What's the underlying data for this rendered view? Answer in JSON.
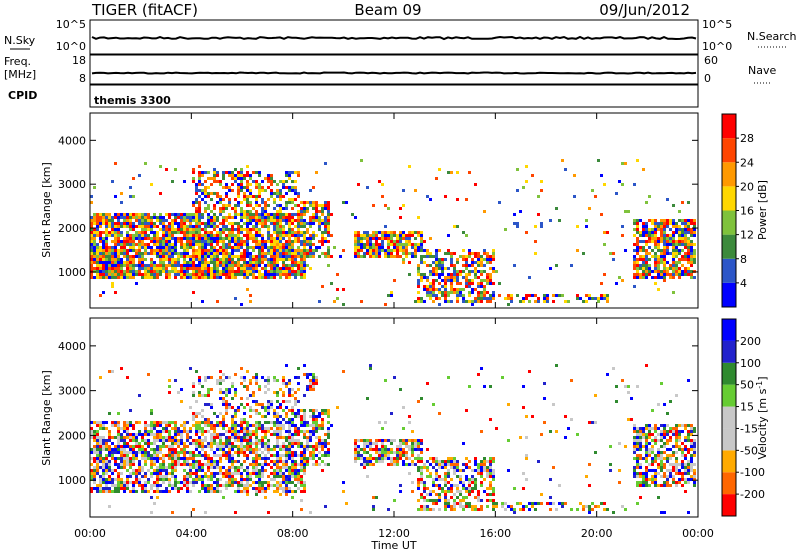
{
  "header": {
    "radar": "TIGER (fitACF)",
    "beam": "Beam 09",
    "date": "09/Jun/2012"
  },
  "sky_panel": {
    "left_label": "N.Sky",
    "left_ticks": [
      "10^5",
      "10^0"
    ],
    "right_label": "N.Search",
    "right_ticks": [
      "10^5",
      "10^0"
    ]
  },
  "freq_panel": {
    "left_label_1": "Freq.",
    "left_label_2": "[MHz]",
    "left_ticks": [
      "18",
      "8"
    ],
    "right_label": "Nave",
    "right_ticks": [
      "60",
      "0"
    ]
  },
  "cpid_panel": {
    "label": "CPID",
    "program": "themis 3300"
  },
  "chart_data": [
    {
      "type": "heatmap",
      "name": "power",
      "ylabel": "Slant Range [km]",
      "yticks": [
        "4000",
        "3000",
        "2000",
        "1000"
      ],
      "ylim": [
        200,
        4600
      ],
      "xlim_hours": [
        0,
        24
      ],
      "colorbar_label": "Power [dB]",
      "colorbar_ticks": [
        "28",
        "24",
        "20",
        "16",
        "12",
        "8",
        "4"
      ],
      "colors": [
        "#0000ff",
        "#2c56c8",
        "#3c8a3c",
        "#7fc23c",
        "#ffd700",
        "#ff9900",
        "#ff4500",
        "#ff0000"
      ],
      "bands": [
        {
          "t0": 0.0,
          "t1": 8.5,
          "r0": 800,
          "r1": 2300,
          "density": 0.85
        },
        {
          "t0": 0.3,
          "t1": 6.5,
          "r0": 900,
          "r1": 1150,
          "density": 0.95
        },
        {
          "t0": 4.0,
          "t1": 8.3,
          "r0": 1200,
          "r1": 3300,
          "density": 0.5
        },
        {
          "t0": 8.0,
          "t1": 9.5,
          "r0": 1300,
          "r1": 2600,
          "density": 0.7
        },
        {
          "t0": 10.5,
          "t1": 13.2,
          "r0": 1300,
          "r1": 1900,
          "density": 0.8
        },
        {
          "t0": 13.0,
          "t1": 16.0,
          "r0": 300,
          "r1": 1500,
          "density": 0.6
        },
        {
          "t0": 16.0,
          "t1": 20.5,
          "r0": 250,
          "r1": 450,
          "density": 0.4
        },
        {
          "t0": 21.5,
          "t1": 24.0,
          "r0": 800,
          "r1": 2200,
          "density": 0.75
        },
        {
          "t0": 0.0,
          "t1": 24.0,
          "r0": 200,
          "r1": 3600,
          "density": 0.03
        }
      ]
    },
    {
      "type": "heatmap",
      "name": "velocity",
      "ylabel": "Slant Range [km]",
      "yticks": [
        "4000",
        "3000",
        "2000",
        "1000"
      ],
      "ylim": [
        200,
        4600
      ],
      "xlim_hours": [
        0,
        24
      ],
      "xticks": [
        "00:00",
        "04:00",
        "08:00",
        "12:00",
        "16:00",
        "20:00",
        "00:00"
      ],
      "xlabel": "Time UT",
      "colorbar_label": "Velocity [m s",
      "colorbar_sup": "-1",
      "colorbar_label_end": "]",
      "colorbar_ticks": [
        "200",
        "100",
        "50",
        "15",
        "-15",
        "-50",
        "-100",
        "-200"
      ],
      "colors": [
        "#ff0000",
        "#ff6600",
        "#ffaa00",
        "#c8c8c8",
        "#c8c8c8",
        "#66cc33",
        "#2f8a2f",
        "#2222cc",
        "#0000ff"
      ],
      "bands": [
        {
          "t0": 0.0,
          "t1": 8.5,
          "r0": 700,
          "r1": 2300,
          "density": 0.7
        },
        {
          "t0": 4.0,
          "t1": 8.3,
          "r0": 1200,
          "r1": 3300,
          "density": 0.35
        },
        {
          "t0": 8.5,
          "t1": 9.0,
          "r0": 3000,
          "r1": 3400,
          "density": 0.9
        },
        {
          "t0": 8.0,
          "t1": 9.5,
          "r0": 1300,
          "r1": 2600,
          "density": 0.6
        },
        {
          "t0": 10.5,
          "t1": 13.2,
          "r0": 1300,
          "r1": 1900,
          "density": 0.7
        },
        {
          "t0": 13.0,
          "t1": 16.0,
          "r0": 300,
          "r1": 1500,
          "density": 0.55
        },
        {
          "t0": 16.0,
          "t1": 20.5,
          "r0": 250,
          "r1": 450,
          "density": 0.4
        },
        {
          "t0": 21.5,
          "t1": 24.0,
          "r0": 800,
          "r1": 2200,
          "density": 0.7
        },
        {
          "t0": 0.0,
          "t1": 24.0,
          "r0": 200,
          "r1": 3600,
          "density": 0.03
        }
      ]
    }
  ]
}
